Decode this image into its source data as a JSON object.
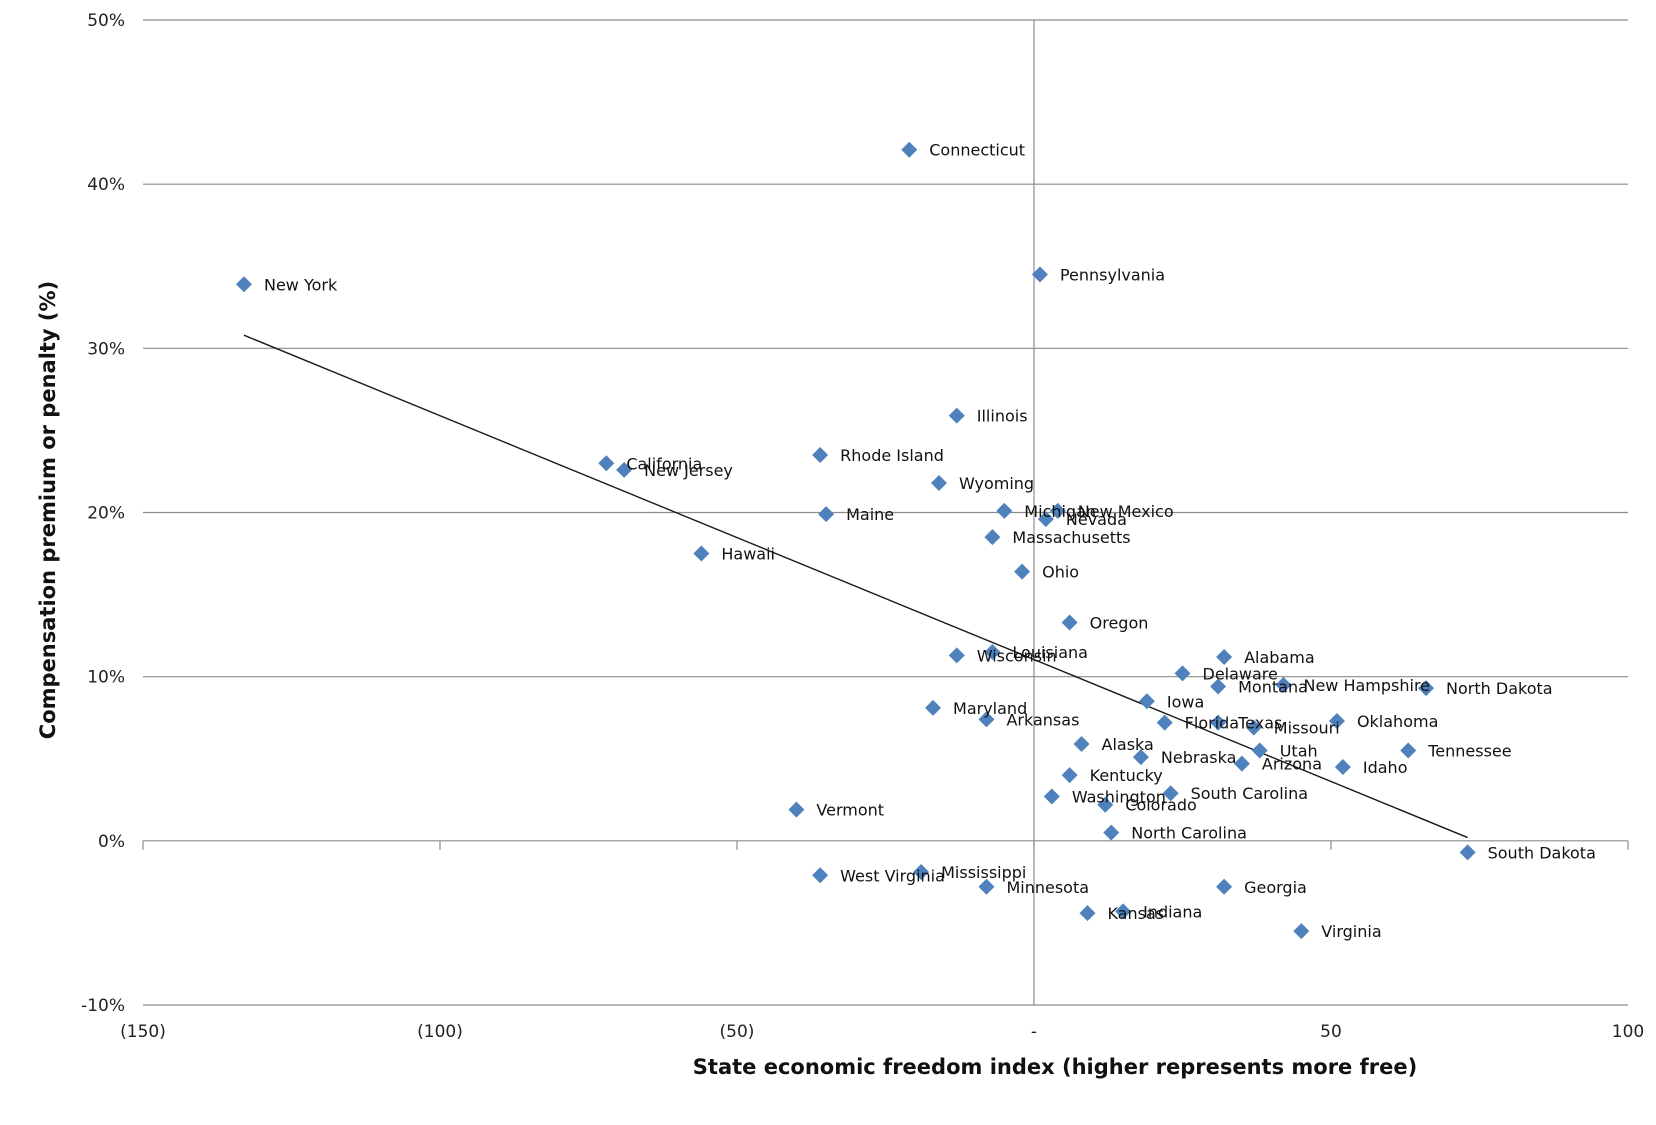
{
  "chart_data": {
    "type": "scatter",
    "title": "",
    "xlabel": "State economic freedom index (higher represents more free)",
    "ylabel": "Compensation premium or penalty (%)",
    "xlim": [
      -150,
      100
    ],
    "ylim": [
      -10,
      50
    ],
    "x_ticks": [
      {
        "value": -150,
        "label": "(150)"
      },
      {
        "value": -100,
        "label": "(100)"
      },
      {
        "value": -50,
        "label": "(50)"
      },
      {
        "value": 0,
        "label": "-"
      },
      {
        "value": 50,
        "label": "50"
      },
      {
        "value": 100,
        "label": "100"
      }
    ],
    "y_ticks": [
      {
        "value": 50,
        "label": "50%"
      },
      {
        "value": 40,
        "label": "40%"
      },
      {
        "value": 30,
        "label": "30%"
      },
      {
        "value": 20,
        "label": "20%"
      },
      {
        "value": 10,
        "label": "10%"
      },
      {
        "value": 0,
        "label": "0%"
      },
      {
        "value": -10,
        "label": "-10%"
      }
    ],
    "gridlines": "horizontal",
    "marker_color": "#4F81BD",
    "trendline": {
      "x": [
        -133,
        73
      ],
      "y": [
        30.8,
        0.2
      ]
    },
    "points": [
      {
        "label": "Connecticut",
        "x": -21,
        "y": 42.1
      },
      {
        "label": "New York",
        "x": -133,
        "y": 33.9
      },
      {
        "label": "Pennsylvania",
        "x": 1,
        "y": 34.5
      },
      {
        "label": "Illinois",
        "x": -13,
        "y": 25.9
      },
      {
        "label": "Rhode Island",
        "x": -36,
        "y": 23.5
      },
      {
        "label": "California",
        "x": -72,
        "y": 23.0
      },
      {
        "label": "New Jersey",
        "x": -69,
        "y": 22.6
      },
      {
        "label": "Wyoming",
        "x": -16,
        "y": 21.8
      },
      {
        "label": "Michigan",
        "x": -5,
        "y": 20.1
      },
      {
        "label": "New Mexico",
        "x": 4,
        "y": 20.1
      },
      {
        "label": "Nevada",
        "x": 2,
        "y": 19.6
      },
      {
        "label": "Maine",
        "x": -35,
        "y": 19.9
      },
      {
        "label": "Massachusetts",
        "x": -7,
        "y": 18.5
      },
      {
        "label": "Hawaii",
        "x": -56,
        "y": 17.5
      },
      {
        "label": "Ohio",
        "x": -2,
        "y": 16.4
      },
      {
        "label": "Oregon",
        "x": 6,
        "y": 13.3
      },
      {
        "label": "Louisiana",
        "x": -7,
        "y": 11.5
      },
      {
        "label": "Wisconsin",
        "x": -13,
        "y": 11.3
      },
      {
        "label": "Alabama",
        "x": 32,
        "y": 11.2
      },
      {
        "label": "Delaware",
        "x": 25,
        "y": 10.2
      },
      {
        "label": "Montana",
        "x": 31,
        "y": 9.4
      },
      {
        "label": "New Hampshire",
        "x": 42,
        "y": 9.5
      },
      {
        "label": "North Dakota",
        "x": 66,
        "y": 9.3
      },
      {
        "label": "Iowa",
        "x": 19,
        "y": 8.5
      },
      {
        "label": "Maryland",
        "x": -17,
        "y": 8.1
      },
      {
        "label": "Arkansas",
        "x": -8,
        "y": 7.4
      },
      {
        "label": "Florida",
        "x": 22,
        "y": 7.2
      },
      {
        "label": "Texas",
        "x": 31,
        "y": 7.2
      },
      {
        "label": "Missouri",
        "x": 37,
        "y": 6.9
      },
      {
        "label": "Oklahoma",
        "x": 51,
        "y": 7.3
      },
      {
        "label": "Alaska",
        "x": 8,
        "y": 5.9
      },
      {
        "label": "Utah",
        "x": 38,
        "y": 5.5
      },
      {
        "label": "Tennessee",
        "x": 63,
        "y": 5.5
      },
      {
        "label": "Nebraska",
        "x": 18,
        "y": 5.1
      },
      {
        "label": "Arizona",
        "x": 35,
        "y": 4.7
      },
      {
        "label": "Idaho",
        "x": 52,
        "y": 4.5
      },
      {
        "label": "Kentucky",
        "x": 6,
        "y": 4.0
      },
      {
        "label": "Washington",
        "x": 3,
        "y": 2.7
      },
      {
        "label": "Colorado",
        "x": 12,
        "y": 2.2
      },
      {
        "label": "South Carolina",
        "x": 23,
        "y": 2.9
      },
      {
        "label": "Vermont",
        "x": -40,
        "y": 1.9
      },
      {
        "label": "North Carolina",
        "x": 13,
        "y": 0.5
      },
      {
        "label": "South Dakota",
        "x": 73,
        "y": -0.7
      },
      {
        "label": "West Virginia",
        "x": -36,
        "y": -2.1
      },
      {
        "label": "Mississippi",
        "x": -19,
        "y": -1.9
      },
      {
        "label": "Minnesota",
        "x": -8,
        "y": -2.8
      },
      {
        "label": "Georgia",
        "x": 32,
        "y": -2.8
      },
      {
        "label": "Kansas",
        "x": 9,
        "y": -4.4
      },
      {
        "label": "Indiana",
        "x": 15,
        "y": -4.3
      },
      {
        "label": "Virginia",
        "x": 45,
        "y": -5.5
      }
    ]
  }
}
